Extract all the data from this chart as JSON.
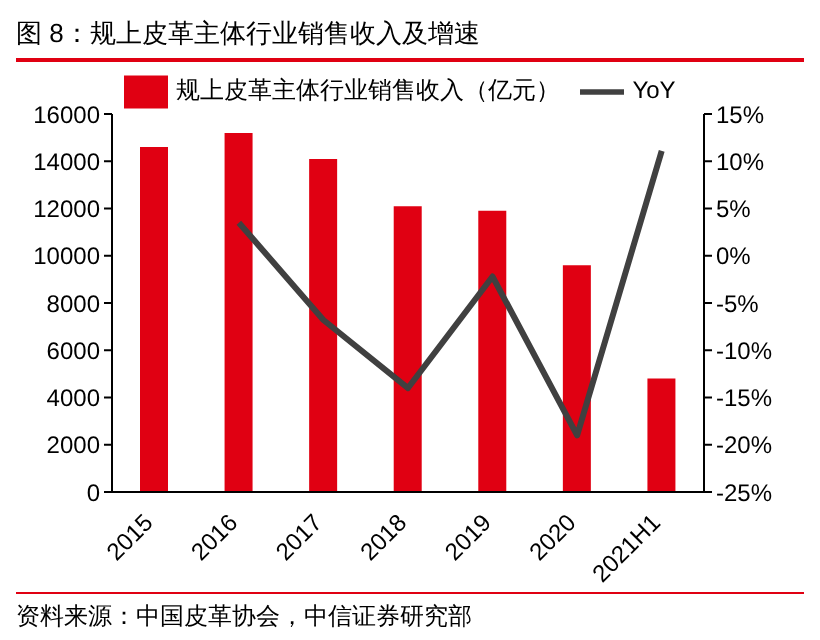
{
  "chart_data": {
    "type": "bar",
    "title": "图 8：规上皮革主体行业销售收入及增速",
    "categories": [
      "2015",
      "2016",
      "2017",
      "2018",
      "2019",
      "2020",
      "2021H1"
    ],
    "series": [
      {
        "name": "规上皮革主体行业销售收入（亿元）",
        "color": "#e00012",
        "values": [
          14600,
          15200,
          14100,
          12100,
          11900,
          9600,
          4800
        ]
      },
      {
        "name": "YoY",
        "type": "line",
        "color": "#404040",
        "axis": "y2",
        "values": [
          null,
          3.5,
          -6.8,
          -14,
          -2.2,
          -19,
          11.1
        ]
      }
    ],
    "ylim": [
      0,
      16000
    ],
    "yticks": [
      0,
      2000,
      4000,
      6000,
      8000,
      10000,
      12000,
      14000,
      16000
    ],
    "y2lim": [
      -25,
      15
    ],
    "y2ticks": [
      {
        "value": -25,
        "label": "-25%"
      },
      {
        "value": -20,
        "label": "-20%"
      },
      {
        "value": -15,
        "label": "-15%"
      },
      {
        "value": -10,
        "label": "-10%"
      },
      {
        "value": -5,
        "label": "-5%"
      },
      {
        "value": 0,
        "label": "0%"
      },
      {
        "value": 5,
        "label": "5%"
      },
      {
        "value": 10,
        "label": "10%"
      },
      {
        "value": 15,
        "label": "15%"
      }
    ],
    "legend": "top",
    "marker": "none",
    "annotations": [
      "资料来源：中国皮革协会，中信证券研究部"
    ]
  }
}
